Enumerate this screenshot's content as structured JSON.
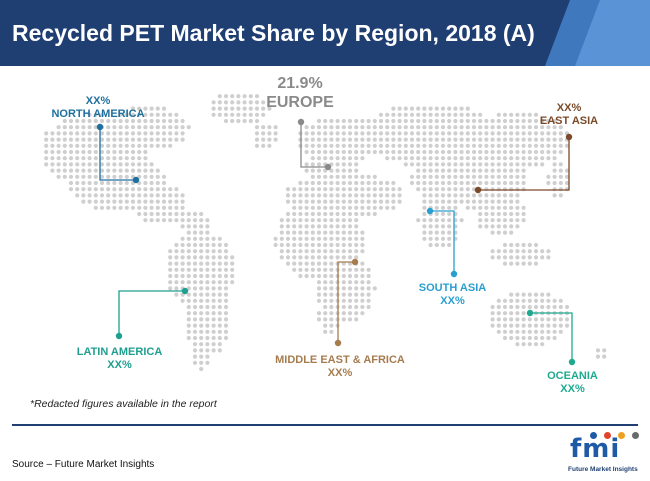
{
  "header": {
    "title": "Recycled PET Market Share by Region, 2018 (A)"
  },
  "colors": {
    "header_dark": "#1f3f73",
    "header_light": "#3f78bd",
    "map_dots": "#cfcfcf"
  },
  "chart_data": {
    "type": "map",
    "title": "Recycled PET Market Share by Region, 2018 (A)",
    "regions": [
      {
        "id": "north-america",
        "name": "NORTH AMERICA",
        "value": "XX%",
        "color": "#1f6f9f"
      },
      {
        "id": "europe",
        "name": "EUROPE",
        "value": "21.9%",
        "color": "#8a8a8a"
      },
      {
        "id": "east-asia",
        "name": "EAST ASIA",
        "value": "XX%",
        "color": "#7a4a2a"
      },
      {
        "id": "south-asia",
        "name": "SOUTH ASIA",
        "value": "XX%",
        "color": "#2a9fcf"
      },
      {
        "id": "latin-america",
        "name": "LATIN AMERICA",
        "value": "XX%",
        "color": "#1f9f8f"
      },
      {
        "id": "middle-east-africa",
        "name": "MIDDLE EAST & AFRICA",
        "value": "XX%",
        "color": "#a67c4f"
      },
      {
        "id": "oceania",
        "name": "OCEANIA",
        "value": "XX%",
        "color": "#1faa8f"
      }
    ]
  },
  "footnote": "*Redacted figures available in the report",
  "source": "Source – Future Market Insights",
  "logo": {
    "mark": "fmi",
    "tagline": "Future Market Insights",
    "dot_colors": [
      "#1f5aa6",
      "#e0452c",
      "#f0a020",
      "#6a6a6a"
    ]
  }
}
